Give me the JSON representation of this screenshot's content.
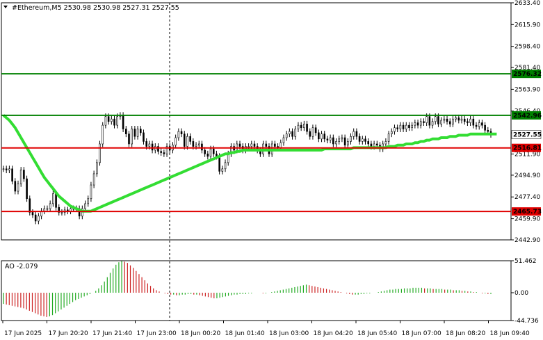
{
  "header": {
    "title": "#Ethereum,M5  2530.98 2530.98 2527.31 2527.55",
    "ao_title": "AO -2.079"
  },
  "chart_data": {
    "type": "candlestick",
    "symbol": "#Ethereum",
    "timeframe": "M5",
    "ohlc_readout": {
      "open": 2530.98,
      "high": 2530.98,
      "low": 2527.31,
      "close": 2527.55
    },
    "y_ticks": [
      "2633.40",
      "2615.90",
      "2598.40",
      "2581.40",
      "2563.90",
      "2546.40",
      "2528.90",
      "2511.90",
      "2494.90",
      "2477.40",
      "2459.90",
      "2442.90"
    ],
    "y_tick_values": [
      2633.4,
      2615.9,
      2598.4,
      2581.4,
      2563.9,
      2546.4,
      2528.9,
      2511.9,
      2494.9,
      2477.4,
      2459.9,
      2442.9
    ],
    "ylim": [
      2442.9,
      2633.4
    ],
    "x_ticks": [
      "17 Jun 2025",
      "17 Jun 20:20",
      "17 Jun 21:40",
      "17 Jun 23:00",
      "18 Jun 00:20",
      "18 Jun 01:40",
      "18 Jun 03:00",
      "18 Jun 04:20",
      "18 Jun 05:40",
      "18 Jun 07:00",
      "18 Jun 08:20",
      "18 Jun 09:40"
    ],
    "horizontal_levels": [
      {
        "value": 2576.32,
        "label": "2576.32",
        "color": "#008000"
      },
      {
        "value": 2542.96,
        "label": "2542.96",
        "color": "#008000"
      },
      {
        "value": 2516.81,
        "label": "2516.81",
        "color": "#e00000"
      },
      {
        "value": 2465.73,
        "label": "2465.73",
        "color": "#e00000"
      }
    ],
    "current_price": {
      "value": 2527.55,
      "label": "2527.55"
    },
    "close": [
      2500,
      2499,
      2500,
      2490,
      2482,
      2488,
      2499,
      2492,
      2476,
      2465,
      2463,
      2458,
      2462,
      2466,
      2468,
      2468,
      2472,
      2480,
      2469,
      2465,
      2465,
      2467,
      2466,
      2468,
      2468,
      2468,
      2462,
      2468,
      2472,
      2476,
      2487,
      2496,
      2505,
      2520,
      2535,
      2542,
      2538,
      2540,
      2535,
      2542,
      2543,
      2532,
      2528,
      2520,
      2532,
      2526,
      2532,
      2529,
      2522,
      2518,
      2520,
      2515,
      2518,
      2514,
      2513,
      2512,
      2518,
      2515,
      2519,
      2525,
      2530,
      2528,
      2518,
      2526,
      2522,
      2518,
      2519,
      2520,
      2515,
      2512,
      2510,
      2516,
      2512,
      2510,
      2498,
      2500,
      2505,
      2512,
      2518,
      2515,
      2520,
      2518,
      2515,
      2518,
      2518,
      2520,
      2518,
      2515,
      2512,
      2520,
      2518,
      2512,
      2520,
      2518,
      2517,
      2521,
      2525,
      2528,
      2530,
      2526,
      2532,
      2535,
      2533,
      2536,
      2530,
      2526,
      2533,
      2529,
      2524,
      2528,
      2524,
      2523,
      2525,
      2520,
      2522,
      2524,
      2525,
      2519,
      2522,
      2526,
      2530,
      2526,
      2522,
      2524,
      2522,
      2520,
      2518,
      2520,
      2519,
      2516,
      2520,
      2522,
      2528,
      2530,
      2533,
      2532,
      2535,
      2532,
      2535,
      2533,
      2535,
      2537,
      2535,
      2538,
      2537,
      2542,
      2535,
      2538,
      2542,
      2536,
      2539,
      2540,
      2538,
      2536,
      2540,
      2541,
      2539,
      2540,
      2538,
      2537,
      2540,
      2535,
      2534,
      2537,
      2535,
      2531,
      2530,
      2527.55
    ],
    "series": [
      {
        "name": "MA",
        "color": "#33dd33",
        "values": [
          2543,
          2541,
          2539,
          2536,
          2533,
          2529,
          2525,
          2521,
          2517,
          2513,
          2509,
          2505,
          2501,
          2497,
          2493,
          2490,
          2487,
          2484,
          2481,
          2478,
          2476,
          2474,
          2472,
          2470,
          2469,
          2468,
          2467,
          2466,
          2466,
          2466,
          2466,
          2467,
          2468,
          2469,
          2470,
          2471,
          2472,
          2473,
          2474,
          2475,
          2476,
          2477,
          2478,
          2479,
          2480,
          2481,
          2482,
          2483,
          2484,
          2485,
          2486,
          2487,
          2488,
          2489,
          2490,
          2491,
          2492,
          2493,
          2494,
          2495,
          2496,
          2497,
          2498,
          2499,
          2500,
          2501,
          2502,
          2503,
          2504,
          2505,
          2506,
          2507,
          2508,
          2509,
          2510,
          2511,
          2512,
          2512,
          2513,
          2513,
          2514,
          2514,
          2515,
          2515,
          2515,
          2515,
          2515,
          2515,
          2515,
          2515,
          2515,
          2515,
          2515,
          2515,
          2515,
          2515,
          2515,
          2515,
          2515,
          2515,
          2515,
          2515,
          2515,
          2515,
          2515,
          2515,
          2515,
          2515,
          2515,
          2515,
          2516,
          2516,
          2516,
          2516,
          2516,
          2516,
          2516,
          2516,
          2516,
          2516,
          2517,
          2517,
          2517,
          2517,
          2517,
          2517,
          2517,
          2517,
          2517,
          2517,
          2517,
          2517,
          2518,
          2518,
          2518,
          2519,
          2519,
          2519,
          2520,
          2520,
          2520,
          2521,
          2521,
          2522,
          2522,
          2523,
          2523,
          2524,
          2524,
          2524,
          2525,
          2525,
          2525,
          2526,
          2526,
          2526,
          2527,
          2527,
          2527,
          2527,
          2528,
          2528,
          2528,
          2528,
          2528,
          2528,
          2528,
          2528,
          2528,
          2528
        ]
      }
    ],
    "ao": {
      "name": "AO",
      "last": -2.079,
      "y_ticks": [
        "51.462",
        "0.00",
        "-44.736"
      ],
      "ylim": [
        -44.736,
        51.462
      ],
      "up_color": "#22aa22",
      "down_color": "#cc2222",
      "values": [
        -18,
        -19,
        -20,
        -21,
        -22,
        -23,
        -24,
        -25,
        -27,
        -29,
        -31,
        -33,
        -35,
        -37,
        -38,
        -39,
        -38,
        -36,
        -33,
        -30,
        -27,
        -24,
        -21,
        -18,
        -15,
        -12,
        -10,
        -8,
        -6,
        -4,
        -2,
        0,
        3,
        7,
        12,
        18,
        25,
        32,
        39,
        45,
        49,
        51,
        50,
        48,
        44,
        40,
        35,
        30,
        25,
        20,
        15,
        11,
        7,
        4,
        2,
        0,
        -1,
        -2,
        -3,
        -3,
        -4,
        -4,
        -3,
        -3,
        -2,
        -2,
        -3,
        -3,
        -4,
        -5,
        -6,
        -7,
        -8,
        -9,
        -9,
        -8,
        -7,
        -6,
        -5,
        -4,
        -3,
        -3,
        -2,
        -2,
        -2,
        -1,
        -1,
        0,
        0,
        0,
        -1,
        -1,
        0,
        1,
        2,
        3,
        4,
        5,
        6,
        7,
        8,
        9,
        10,
        11,
        12,
        13,
        12,
        11,
        10,
        9,
        8,
        7,
        6,
        5,
        4,
        3,
        2,
        1,
        0,
        -1,
        -2,
        -3,
        -3,
        -3,
        -2,
        -2,
        -1,
        -1,
        0,
        0,
        1,
        2,
        3,
        4,
        5,
        5,
        6,
        6,
        6,
        7,
        7,
        7,
        8,
        8,
        8,
        8,
        7,
        7,
        7,
        6,
        6,
        6,
        6,
        5,
        5,
        5,
        4,
        4,
        4,
        3,
        3,
        2,
        2,
        1,
        1,
        0,
        -1,
        -1,
        -2,
        -2
      ]
    }
  }
}
